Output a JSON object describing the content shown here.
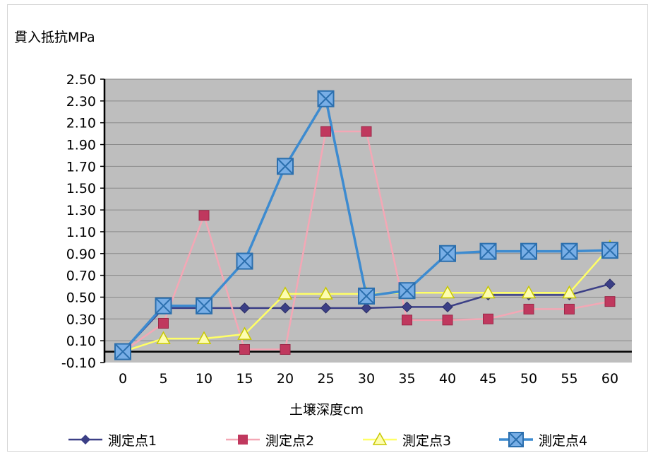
{
  "chart_data": {
    "type": "line",
    "ylabel": "貫入抵抗MPa",
    "xlabel": "土壌深度cm",
    "categories": [
      "0",
      "5",
      "10",
      "15",
      "20",
      "25",
      "30",
      "35",
      "40",
      "45",
      "50",
      "55",
      "60"
    ],
    "y_ticks": [
      "2.50",
      "2.30",
      "2.10",
      "1.90",
      "1.70",
      "1.50",
      "1.30",
      "1.10",
      "0.90",
      "0.70",
      "0.50",
      "0.30",
      "0.10",
      "-0.10"
    ],
    "ylim": [
      -0.1,
      2.5
    ],
    "grid": true,
    "legend_position": "bottom",
    "plot_background": "#bebebe",
    "series": [
      {
        "name": "測定点1",
        "color": "#3b3f86",
        "marker": "diamond",
        "values": [
          0.0,
          0.4,
          0.4,
          0.4,
          0.4,
          0.4,
          0.4,
          0.41,
          0.41,
          0.52,
          0.52,
          0.52,
          0.62
        ]
      },
      {
        "name": "測定点2",
        "color": "#f4a7b5",
        "marker_color": "#c0385e",
        "marker": "square",
        "values": [
          0.0,
          0.26,
          1.25,
          0.02,
          0.02,
          2.02,
          2.02,
          0.29,
          0.29,
          0.3,
          0.39,
          0.39,
          0.46
        ]
      },
      {
        "name": "測定点3",
        "color": "#ffff66",
        "marker_color": "#eeee55",
        "marker": "triangle",
        "values": [
          0.0,
          0.12,
          0.12,
          0.16,
          0.53,
          0.53,
          0.53,
          0.54,
          0.54,
          0.54,
          0.54,
          0.54,
          0.96
        ]
      },
      {
        "name": "測定点4",
        "color": "#3d8bd0",
        "marker": "square-x",
        "values": [
          0.0,
          0.42,
          0.42,
          0.83,
          1.7,
          2.32,
          0.51,
          0.56,
          0.9,
          0.92,
          0.92,
          0.92,
          0.93
        ]
      }
    ]
  }
}
